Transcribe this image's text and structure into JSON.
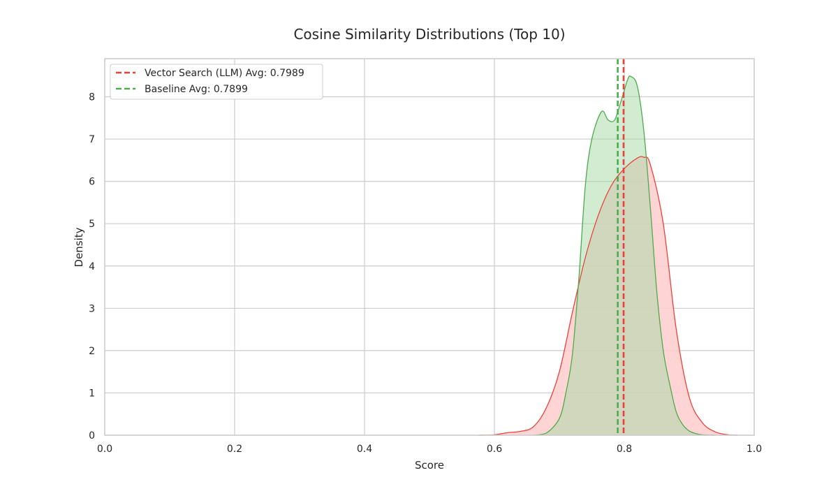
{
  "chart_data": {
    "type": "area",
    "title": "Cosine Similarity Distributions (Top 10)",
    "xlabel": "Score",
    "ylabel": "Density",
    "xlim": [
      0.0,
      1.0
    ],
    "ylim": [
      0,
      8.9
    ],
    "xticks": [
      "0.0",
      "0.2",
      "0.4",
      "0.6",
      "0.8",
      "1.0"
    ],
    "yticks": [
      "0",
      "1",
      "2",
      "3",
      "4",
      "5",
      "6",
      "7",
      "8"
    ],
    "grid": true,
    "legend_position": "top-left",
    "series": [
      {
        "name": "Vector Search (LLM)",
        "color": "#e8433a",
        "fill": "#ffcccc",
        "x": [
          0.575,
          0.6,
          0.62,
          0.64,
          0.66,
          0.68,
          0.7,
          0.72,
          0.74,
          0.76,
          0.78,
          0.8,
          0.82,
          0.83,
          0.84,
          0.86,
          0.88,
          0.9,
          0.92,
          0.94,
          0.96,
          0.975
        ],
        "density": [
          0.0,
          0.01,
          0.06,
          0.09,
          0.2,
          0.65,
          1.5,
          2.9,
          4.2,
          5.2,
          5.9,
          6.3,
          6.55,
          6.57,
          6.4,
          5.0,
          2.5,
          0.9,
          0.3,
          0.08,
          0.01,
          0.0
        ]
      },
      {
        "name": "Baseline",
        "color": "#4daa4d",
        "fill": "#a3d9a3",
        "x": [
          0.66,
          0.68,
          0.7,
          0.71,
          0.72,
          0.73,
          0.74,
          0.75,
          0.765,
          0.775,
          0.785,
          0.795,
          0.805,
          0.81,
          0.82,
          0.83,
          0.84,
          0.85,
          0.86,
          0.87,
          0.88,
          0.89,
          0.9,
          0.91,
          0.92,
          0.94
        ],
        "density": [
          0.0,
          0.05,
          0.4,
          1.0,
          1.9,
          3.7,
          5.9,
          7.0,
          7.65,
          7.45,
          7.45,
          7.9,
          8.4,
          8.48,
          8.25,
          7.2,
          5.4,
          3.4,
          2.0,
          1.2,
          0.55,
          0.25,
          0.1,
          0.04,
          0.01,
          0.0
        ]
      }
    ],
    "reference_lines": [
      {
        "label": "Vector Search (LLM) Avg: 0.7989",
        "x": 0.7989,
        "color": "#e8433a"
      },
      {
        "label": "Baseline Avg: 0.7899",
        "x": 0.7899,
        "color": "#4daa4d"
      }
    ]
  }
}
